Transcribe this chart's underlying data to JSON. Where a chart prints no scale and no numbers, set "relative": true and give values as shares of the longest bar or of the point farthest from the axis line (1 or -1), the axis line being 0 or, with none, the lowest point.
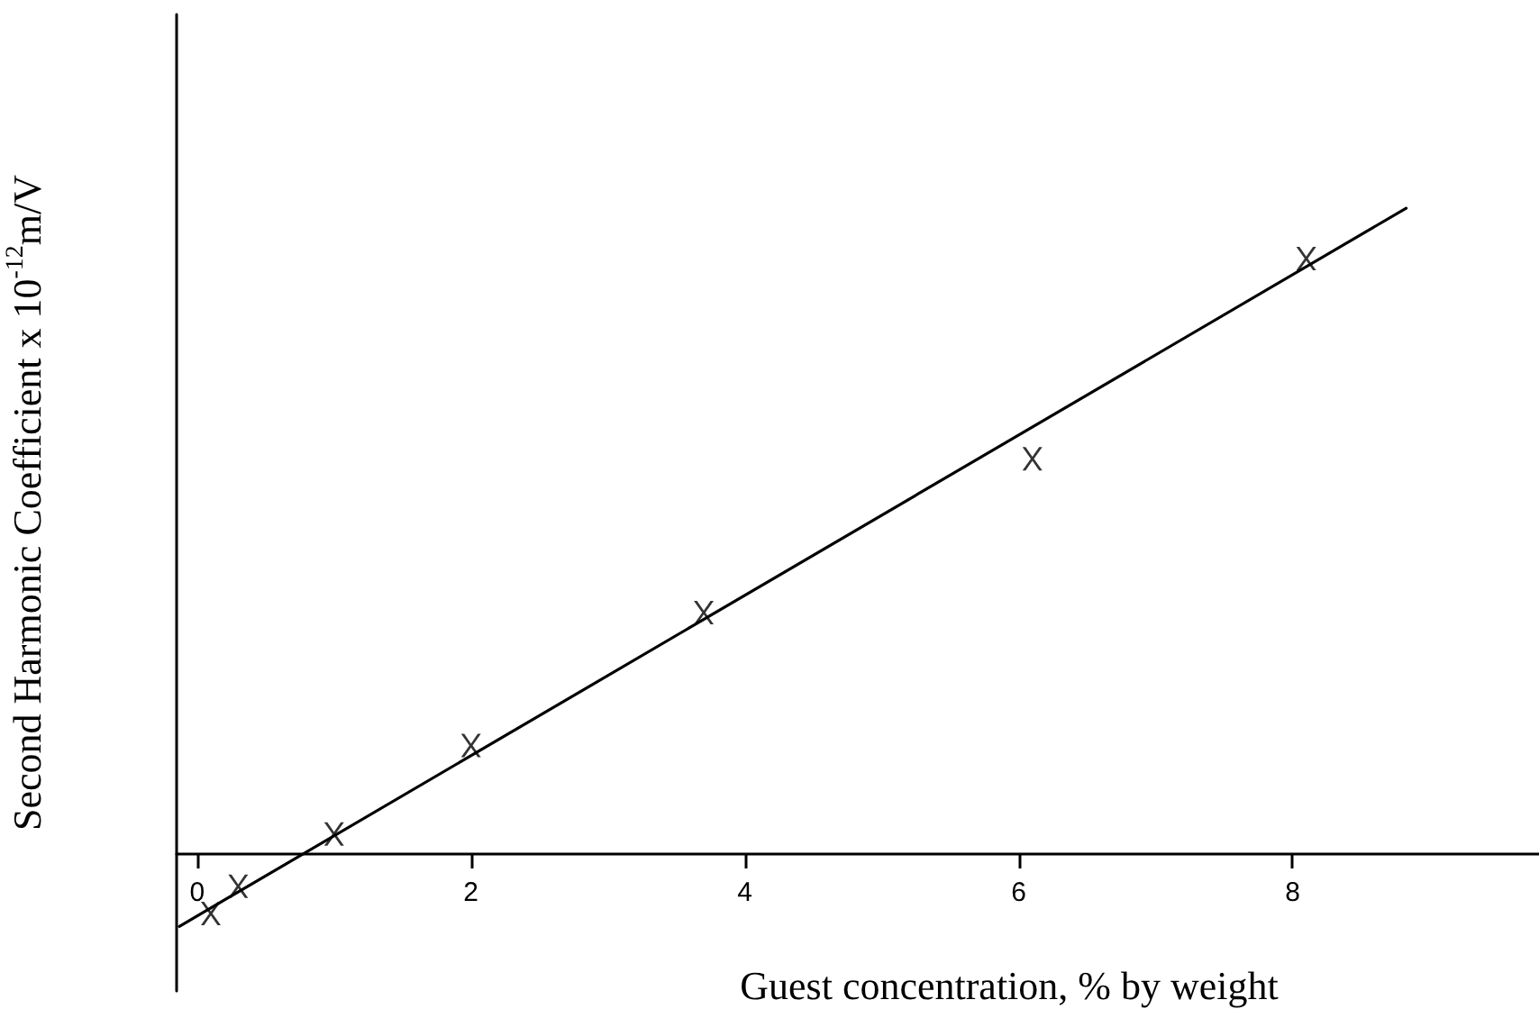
{
  "chart_data": {
    "type": "scatter",
    "xlabel": "Guest concentration, % by weight",
    "ylabel": "Second Harmonic Coefficient x 10$^{-12}$m/V",
    "relative": true,
    "xlim": [
      -0.15,
      9.8
    ],
    "xticks": [
      0,
      2,
      4,
      6,
      8
    ],
    "grid": false,
    "marker": "cross",
    "series": [
      {
        "color": "#000000",
        "x": [
          0.1,
          0.3,
          1.0,
          2.0,
          3.7,
          6.1,
          8.1
        ],
        "values": [
          -0.092,
          -0.05,
          0.031,
          0.168,
          0.374,
          0.612,
          0.922
        ]
      },
      {
        "type": "line",
        "color": "#000000",
        "marker": "none",
        "line_style": "solid",
        "x": [
          -0.13,
          8.83
        ],
        "values": [
          -0.112,
          1
        ]
      }
    ]
  }
}
